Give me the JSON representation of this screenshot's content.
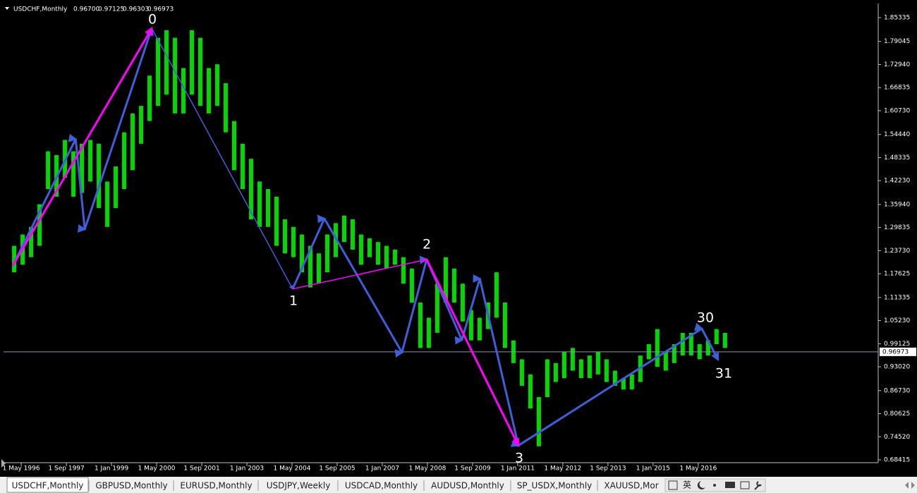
{
  "header": {
    "symbol": "USDCHF,Monthly",
    "open": "0.96700",
    "high": "0.97125",
    "low": "0.96303",
    "close": "0.96973"
  },
  "chart_data": {
    "type": "ohlc",
    "color": "#00ff00",
    "x": [
      1996.125,
      1996.375,
      1996.625,
      1996.875,
      1997.125,
      1997.375,
      1997.625,
      1997.875,
      1998.125,
      1998.375,
      1998.625,
      1998.875,
      1999.125,
      1999.375,
      1999.625,
      1999.875,
      2000.125,
      2000.375,
      2000.625,
      2000.875,
      2001.125,
      2001.375,
      2001.625,
      2001.875,
      2002.125,
      2002.375,
      2002.625,
      2002.875,
      2003.125,
      2003.375,
      2003.625,
      2003.875,
      2004.125,
      2004.375,
      2004.625,
      2004.875,
      2005.125,
      2005.375,
      2005.625,
      2005.875,
      2006.125,
      2006.375,
      2006.625,
      2006.875,
      2007.125,
      2007.375,
      2007.625,
      2007.875,
      2008.125,
      2008.375,
      2008.625,
      2008.875,
      2009.125,
      2009.375,
      2009.625,
      2009.875,
      2010.125,
      2010.375,
      2010.625,
      2010.875,
      2011.125,
      2011.375,
      2011.625,
      2011.875,
      2012.125,
      2012.375,
      2012.625,
      2012.875,
      2013.125,
      2013.375,
      2013.625,
      2013.875,
      2014.125,
      2014.375,
      2014.625,
      2014.875,
      2015.125,
      2015.375,
      2015.625,
      2015.875,
      2016.125,
      2016.375,
      2016.625,
      2016.875,
      2017.125
    ],
    "high": [
      1.25,
      1.28,
      1.3,
      1.36,
      1.5,
      1.49,
      1.53,
      1.5,
      1.52,
      1.53,
      1.52,
      1.42,
      1.46,
      1.55,
      1.6,
      1.62,
      1.7,
      1.8,
      1.82,
      1.8,
      1.72,
      1.82,
      1.8,
      1.72,
      1.73,
      1.68,
      1.58,
      1.52,
      1.48,
      1.42,
      1.4,
      1.38,
      1.32,
      1.3,
      1.28,
      1.25,
      1.23,
      1.28,
      1.31,
      1.33,
      1.32,
      1.28,
      1.27,
      1.26,
      1.25,
      1.24,
      1.22,
      1.19,
      1.1,
      1.06,
      1.15,
      1.22,
      1.19,
      1.15,
      1.08,
      1.06,
      1.1,
      1.18,
      1.1,
      1.0,
      0.95,
      0.91,
      0.85,
      0.95,
      0.94,
      0.97,
      0.98,
      0.95,
      0.96,
      0.97,
      0.95,
      0.92,
      0.9,
      0.91,
      0.96,
      0.99,
      1.03,
      0.97,
      0.99,
      1.02,
      1.02,
      0.99,
      1.0,
      1.03,
      1.02
    ],
    "low": [
      1.18,
      1.2,
      1.22,
      1.25,
      1.4,
      1.38,
      1.43,
      1.38,
      1.39,
      1.42,
      1.35,
      1.3,
      1.35,
      1.4,
      1.45,
      1.52,
      1.58,
      1.62,
      1.65,
      1.6,
      1.6,
      1.65,
      1.62,
      1.6,
      1.62,
      1.55,
      1.45,
      1.4,
      1.32,
      1.3,
      1.3,
      1.25,
      1.23,
      1.22,
      1.18,
      1.14,
      1.15,
      1.18,
      1.22,
      1.26,
      1.24,
      1.2,
      1.22,
      1.2,
      1.19,
      1.2,
      1.15,
      1.1,
      0.98,
      0.98,
      1.02,
      1.1,
      1.1,
      1.05,
      1.0,
      1.0,
      1.03,
      1.06,
      0.98,
      0.94,
      0.88,
      0.82,
      0.72,
      0.85,
      0.89,
      0.9,
      0.92,
      0.9,
      0.9,
      0.91,
      0.89,
      0.88,
      0.87,
      0.87,
      0.89,
      0.95,
      0.93,
      0.92,
      0.94,
      0.96,
      0.96,
      0.95,
      0.96,
      0.99,
      0.98
    ],
    "current_price": 0.96973,
    "xlim": [
      1995.81,
      2021.65
    ],
    "ylim": [
      0.68415,
      1.85335
    ],
    "xticks": [
      {
        "value": 1996.333,
        "label": "1 May 1996"
      },
      {
        "value": 1997.667,
        "label": "1 Sep 1997"
      },
      {
        "value": 1999.0,
        "label": "1 Jan 1999"
      },
      {
        "value": 2000.333,
        "label": "1 May 2000"
      },
      {
        "value": 2001.667,
        "label": "1 Sep 2001"
      },
      {
        "value": 2003.0,
        "label": "1 Jan 2003"
      },
      {
        "value": 2004.333,
        "label": "1 May 2004"
      },
      {
        "value": 2005.667,
        "label": "1 Sep 2005"
      },
      {
        "value": 2007.0,
        "label": "1 Jan 2007"
      },
      {
        "value": 2008.333,
        "label": "1 May 2008"
      },
      {
        "value": 2009.667,
        "label": "1 Sep 2009"
      },
      {
        "value": 2011.0,
        "label": "1 Jan 2011"
      },
      {
        "value": 2012.333,
        "label": "1 May 2012"
      },
      {
        "value": 2013.667,
        "label": "1 Sep 2013"
      },
      {
        "value": 2015.0,
        "label": "1 Jan 2015"
      },
      {
        "value": 2016.333,
        "label": "1 May 2016"
      }
    ],
    "yticks": [
      1.85335,
      1.79045,
      {
        "value": 1.7294,
        "label": "1.72940"
      },
      1.66835,
      {
        "value": 1.6073,
        "label": "1.60730"
      },
      {
        "value": 1.5444,
        "label": "1.54440"
      },
      1.48335,
      {
        "value": 1.4223,
        "label": "1.42230"
      },
      {
        "value": 1.3594,
        "label": "1.35940"
      },
      1.29835,
      {
        "value": 1.2373,
        "label": "1.23730"
      },
      1.17625,
      1.11335,
      {
        "value": 1.0523,
        "label": "1.05230"
      },
      0.99125,
      {
        "value": 0.9302,
        "label": "0.93020"
      },
      {
        "value": 0.8673,
        "label": "0.86730"
      },
      0.80625,
      {
        "value": 0.7452,
        "label": "0.74520"
      },
      0.68415
    ],
    "zigzags": [
      {
        "color": "#3f5fd8",
        "style": "thick",
        "x": [
          1996.08,
          1997.94,
          1998.21,
          2000.19
        ],
        "y": [
          1.197,
          1.532,
          1.294,
          1.825
        ]
      },
      {
        "color": "#3f5fd8",
        "style": "thin",
        "x": [
          2000.19,
          2004.35
        ],
        "y": [
          1.825,
          1.136
        ]
      },
      {
        "color": "#3f5fd8",
        "style": "thick",
        "x": [
          2004.35,
          2005.29,
          2007.58,
          2008.31,
          2009.35,
          2009.88,
          2011.02,
          2016.44,
          2016.92
        ],
        "y": [
          1.136,
          1.322,
          0.968,
          1.214,
          1.001,
          1.163,
          0.722,
          1.031,
          0.949
        ]
      },
      {
        "color": "#ff00ff",
        "style": "thick",
        "x": [
          1996.08,
          2000.19
        ],
        "y": [
          1.197,
          1.825
        ]
      },
      {
        "color": "#ff00ff",
        "style": "thin",
        "x": [
          2004.35,
          2008.31
        ],
        "y": [
          1.136,
          1.214
        ]
      },
      {
        "color": "#ff00ff",
        "style": "thick",
        "x": [
          2008.31,
          2011.02
        ],
        "y": [
          1.214,
          0.722
        ]
      }
    ],
    "annotations": [
      "0",
      "1",
      "2",
      "3",
      "30",
      "31"
    ]
  },
  "tabs": [
    "USDCHF,Monthly",
    "GBPUSD,Monthly",
    "EURUSD,Monthly",
    "USDJPY,Weekly",
    "USDCAD,Monthly",
    "AUDUSD,Monthly",
    "SP_USDX,Monthly",
    "XAUUSD,Mor"
  ],
  "ime_label": "英"
}
